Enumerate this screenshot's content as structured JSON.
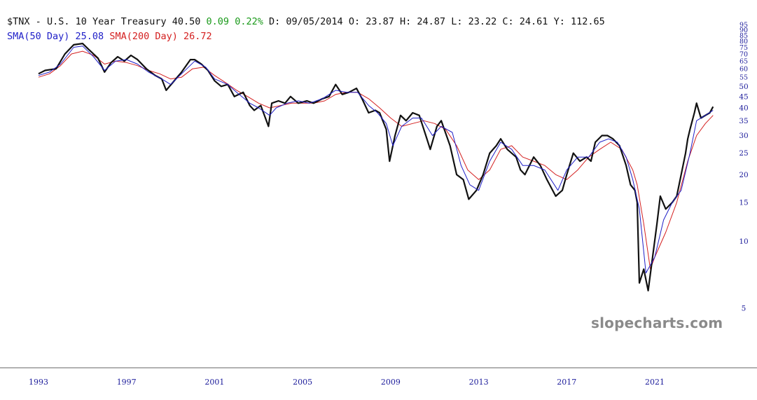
{
  "header": {
    "symbol": "$TNX",
    "separator": "-",
    "name": "U.S. 10 Year Treasury",
    "last": "40.50",
    "change": "0.09",
    "change_pct": "0.22%",
    "date_label": "D:",
    "date": "09/05/2014",
    "open_label": "O:",
    "open": "23.87",
    "high_label": "H:",
    "high": "24.87",
    "low_label": "L:",
    "low": "23.22",
    "close_label": "C:",
    "close": "24.61",
    "y_label": "Y:",
    "y_value": "112.65"
  },
  "indicators": {
    "sma50_label": "SMA(50 Day)",
    "sma50_value": "25.08",
    "sma200_label": "SMA(200 Day)",
    "sma200_value": "26.72"
  },
  "watermark": "slopecharts.com",
  "colors": {
    "price": "#111111",
    "sma50": "#2020c8",
    "sma200": "#d42020",
    "axis_text": "#1a1a9a",
    "change_positive": "#1a9a1a"
  },
  "chart_data": {
    "type": "line",
    "y_scale": "log",
    "ylim": [
      4.3,
      98
    ],
    "xlim": [
      1992.8,
      2023.8
    ],
    "x_ticks": [
      "1993",
      "1997",
      "2001",
      "2005",
      "2009",
      "2013",
      "2017",
      "2021"
    ],
    "y_ticks": [
      "5",
      "10",
      "15",
      "20",
      "25",
      "30",
      "35",
      "40",
      "45",
      "50",
      "55",
      "60",
      "65",
      "70",
      "75",
      "80",
      "85",
      "90",
      "95"
    ],
    "legend_placement": "top-left",
    "grid": false,
    "series": [
      {
        "name": "$TNX",
        "x": [
          1993.0,
          1993.3,
          1993.8,
          1994.2,
          1994.6,
          1995.0,
          1995.3,
          1995.7,
          1996.0,
          1996.3,
          1996.6,
          1996.9,
          1997.2,
          1997.5,
          1997.9,
          1998.3,
          1998.6,
          1998.8,
          1999.1,
          1999.5,
          1999.9,
          2000.1,
          2000.4,
          2000.7,
          2001.0,
          2001.3,
          2001.6,
          2001.9,
          2002.3,
          2002.6,
          2002.8,
          2003.1,
          2003.45,
          2003.6,
          2003.9,
          2004.2,
          2004.45,
          2004.8,
          2005.2,
          2005.5,
          2005.9,
          2006.2,
          2006.5,
          2006.8,
          2007.1,
          2007.45,
          2007.7,
          2008.0,
          2008.3,
          2008.5,
          2008.8,
          2008.95,
          2009.2,
          2009.45,
          2009.7,
          2010.0,
          2010.3,
          2010.6,
          2010.8,
          2011.1,
          2011.3,
          2011.7,
          2012.0,
          2012.3,
          2012.55,
          2012.9,
          2013.2,
          2013.5,
          2013.8,
          2014.0,
          2014.3,
          2014.7,
          2014.9,
          2015.1,
          2015.5,
          2015.8,
          2016.1,
          2016.5,
          2016.8,
          2017.0,
          2017.3,
          2017.6,
          2017.9,
          2018.1,
          2018.3,
          2018.6,
          2018.85,
          2019.1,
          2019.4,
          2019.7,
          2019.9,
          2020.1,
          2020.2,
          2020.3,
          2020.5,
          2020.7,
          2020.9,
          2021.1,
          2021.25,
          2021.5,
          2021.8,
          2022.0,
          2022.2,
          2022.4,
          2022.5,
          2022.6,
          2022.8,
          2022.9,
          2023.1,
          2023.3,
          2023.5,
          2023.65
        ],
        "y": [
          57,
          59,
          60,
          70,
          77,
          78,
          73,
          67,
          58,
          64,
          68,
          65,
          69,
          66,
          60,
          56,
          54,
          48,
          52,
          58,
          66,
          66,
          63,
          59,
          53,
          50,
          51,
          45,
          47,
          41,
          39,
          41,
          33,
          42,
          43,
          42,
          45,
          42,
          43,
          42,
          44,
          45,
          51,
          46,
          47,
          49,
          44,
          38,
          39,
          38,
          32,
          23,
          30,
          37,
          35,
          38,
          37,
          30,
          26,
          33,
          35,
          27,
          20,
          19,
          15.5,
          17,
          20,
          25,
          27,
          29,
          26,
          24,
          21,
          20,
          24,
          22,
          19,
          16,
          17,
          20,
          25,
          23,
          24,
          23,
          28,
          30,
          30,
          29,
          27,
          22,
          18,
          17,
          15,
          6.5,
          7.5,
          6,
          8.5,
          12,
          16,
          14,
          15,
          16,
          20,
          25,
          29,
          32,
          38,
          42,
          36,
          37,
          38,
          40.5
        ]
      },
      {
        "name": "SMA(50 Day)",
        "x": [
          1993.0,
          1993.5,
          1994.0,
          1994.6,
          1995.0,
          1995.5,
          1996.0,
          1996.5,
          1997.0,
          1997.5,
          1998.0,
          1998.6,
          1999.0,
          1999.5,
          2000.1,
          2000.6,
          2001.0,
          2001.6,
          2002.0,
          2002.6,
          2003.0,
          2003.5,
          2003.8,
          2004.3,
          2004.8,
          2005.3,
          2005.9,
          2006.5,
          2007.0,
          2007.5,
          2008.0,
          2008.4,
          2008.8,
          2009.1,
          2009.5,
          2010.0,
          2010.4,
          2010.9,
          2011.3,
          2011.8,
          2012.2,
          2012.6,
          2013.0,
          2013.5,
          2014.0,
          2014.5,
          2015.0,
          2015.5,
          2016.0,
          2016.6,
          2017.0,
          2017.5,
          2018.0,
          2018.5,
          2018.9,
          2019.3,
          2019.7,
          2020.0,
          2020.3,
          2020.6,
          2021.0,
          2021.4,
          2021.8,
          2022.2,
          2022.6,
          2022.9,
          2023.3,
          2023.65
        ],
        "y": [
          56,
          58,
          63,
          75,
          76,
          68,
          59,
          65,
          66,
          63,
          58,
          54,
          51,
          57,
          65,
          61,
          54,
          51,
          47,
          42,
          40,
          37,
          40,
          42,
          43,
          42,
          44,
          48,
          47,
          47,
          41,
          38,
          34,
          27,
          33,
          36,
          36,
          30,
          33,
          31,
          22,
          18,
          17,
          23,
          28,
          26,
          22,
          22,
          21,
          17,
          21,
          24,
          24,
          28,
          29,
          28,
          24,
          19,
          14,
          7.2,
          8.5,
          12.5,
          15,
          17,
          25,
          35,
          37,
          39
        ]
      },
      {
        "name": "SMA(200 Day)",
        "x": [
          1993.0,
          1993.5,
          1994.0,
          1994.5,
          1995.0,
          1995.5,
          1996.0,
          1996.5,
          1997.0,
          1997.5,
          1998.0,
          1998.5,
          1999.0,
          1999.5,
          2000.0,
          2000.5,
          2001.0,
          2001.5,
          2002.0,
          2002.5,
          2003.0,
          2003.5,
          2004.0,
          2004.5,
          2005.0,
          2005.5,
          2006.0,
          2006.5,
          2007.0,
          2007.5,
          2008.0,
          2008.5,
          2009.0,
          2009.5,
          2010.0,
          2010.5,
          2011.0,
          2011.5,
          2012.0,
          2012.5,
          2013.0,
          2013.5,
          2014.0,
          2014.5,
          2015.0,
          2015.5,
          2016.0,
          2016.5,
          2017.0,
          2017.5,
          2018.0,
          2018.5,
          2019.0,
          2019.5,
          2020.0,
          2020.2,
          2020.5,
          2020.8,
          2021.0,
          2021.5,
          2022.0,
          2022.5,
          2022.9,
          2023.3,
          2023.65
        ],
        "y": [
          55,
          57,
          62,
          70,
          72,
          69,
          63,
          65,
          64,
          62,
          59,
          57,
          54,
          55,
          60,
          61,
          56,
          52,
          48,
          45,
          42,
          40,
          41,
          42,
          42,
          42,
          43,
          46,
          47,
          47,
          44,
          40,
          36,
          33,
          34,
          35,
          34,
          32,
          27,
          21,
          19,
          21,
          26,
          27,
          24,
          23,
          22,
          20,
          19,
          21,
          24,
          26,
          28,
          26,
          21,
          18,
          12,
          7.5,
          8.5,
          11,
          15,
          23,
          30,
          34,
          37
        ]
      }
    ]
  }
}
